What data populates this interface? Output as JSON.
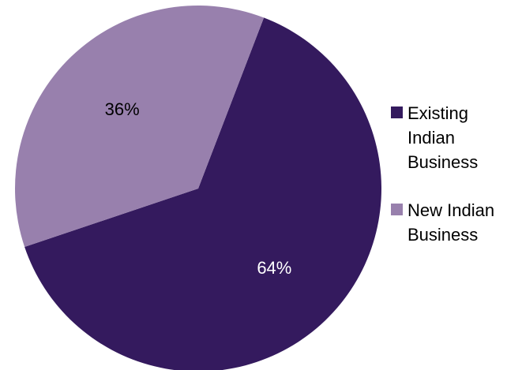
{
  "chart_data": {
    "type": "pie",
    "categories": [
      "Existing Indian Business",
      "New Indian Business"
    ],
    "values": [
      64,
      36
    ],
    "value_labels": [
      "64%",
      "36%"
    ],
    "colors": [
      "#341a5e",
      "#9880ad"
    ],
    "label_colors": [
      "#ffffff",
      "#000000"
    ],
    "title": "",
    "legend_position": "right",
    "start_angle_deg": 21
  }
}
